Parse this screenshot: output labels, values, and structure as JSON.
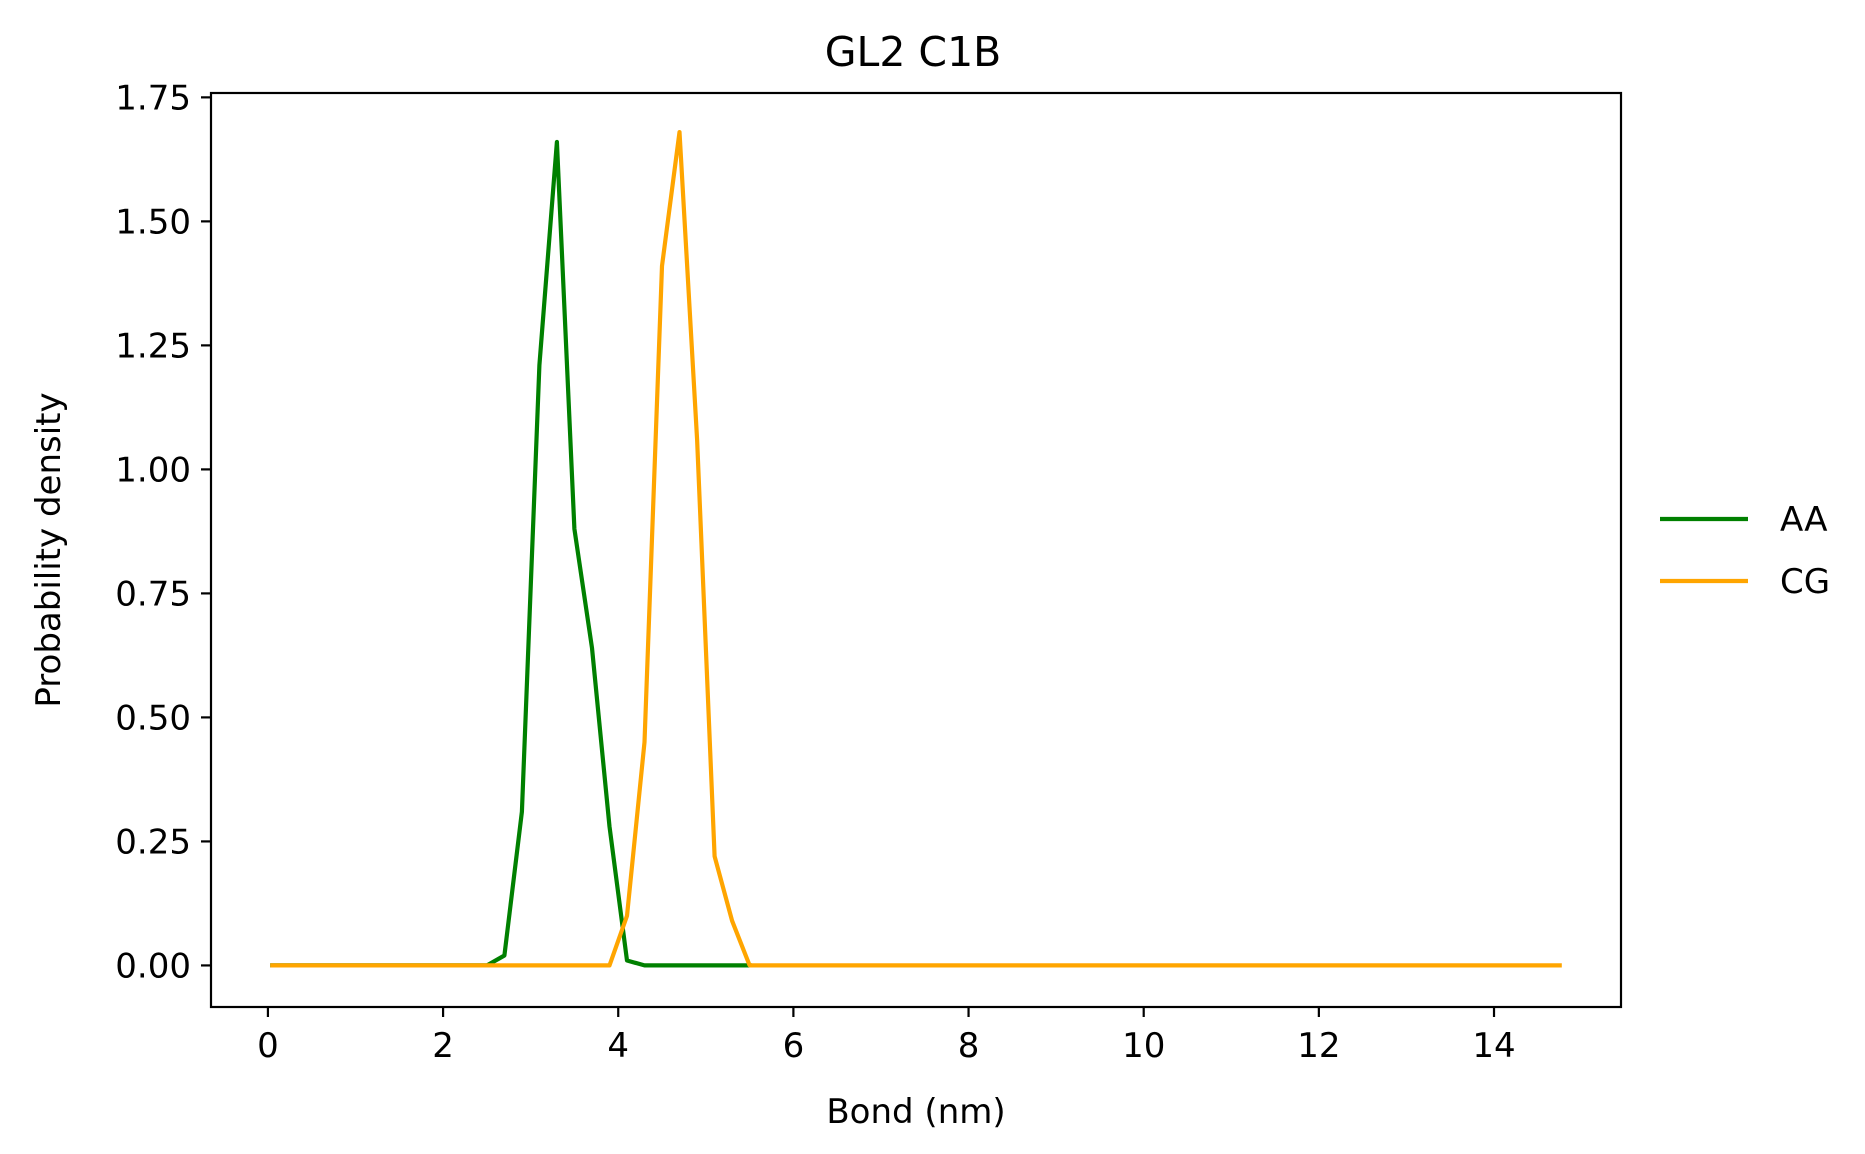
{
  "chart_data": {
    "type": "line",
    "title": "GL2 C1B",
    "xlabel": "Bond (nm)",
    "ylabel": "Probability density",
    "xlim": [
      -0.65,
      15.45
    ],
    "ylim": [
      -0.0838,
      1.7588
    ],
    "x_ticks": [
      0,
      2,
      4,
      6,
      8,
      10,
      12,
      14
    ],
    "x_tick_labels": [
      "0",
      "2",
      "4",
      "6",
      "8",
      "10",
      "12",
      "14"
    ],
    "y_ticks": [
      0.0,
      0.25,
      0.5,
      0.75,
      1.0,
      1.25,
      1.5,
      1.75
    ],
    "y_tick_labels": [
      "0.00",
      "0.25",
      "0.50",
      "0.75",
      "1.00",
      "1.25",
      "1.50",
      "1.75"
    ],
    "grid": false,
    "legend_position": "center-right-outside",
    "series": [
      {
        "name": "AA",
        "color": "#008000",
        "points": [
          [
            0.05,
            0.0
          ],
          [
            2.5,
            0.0
          ],
          [
            2.7,
            0.02
          ],
          [
            2.9,
            0.31
          ],
          [
            3.1,
            1.21
          ],
          [
            3.3,
            1.66
          ],
          [
            3.5,
            0.88
          ],
          [
            3.7,
            0.64
          ],
          [
            3.9,
            0.28
          ],
          [
            4.1,
            0.01
          ],
          [
            4.3,
            0.0
          ],
          [
            5.5,
            0.0
          ]
        ]
      },
      {
        "name": "CG",
        "color": "#FFA500",
        "points": [
          [
            0.05,
            0.0
          ],
          [
            3.9,
            0.0
          ],
          [
            4.1,
            0.1
          ],
          [
            4.3,
            0.45
          ],
          [
            4.5,
            1.41
          ],
          [
            4.7,
            1.68
          ],
          [
            4.9,
            1.06
          ],
          [
            5.1,
            0.22
          ],
          [
            5.3,
            0.09
          ],
          [
            5.5,
            0.0
          ],
          [
            14.75,
            0.0
          ]
        ]
      }
    ]
  }
}
